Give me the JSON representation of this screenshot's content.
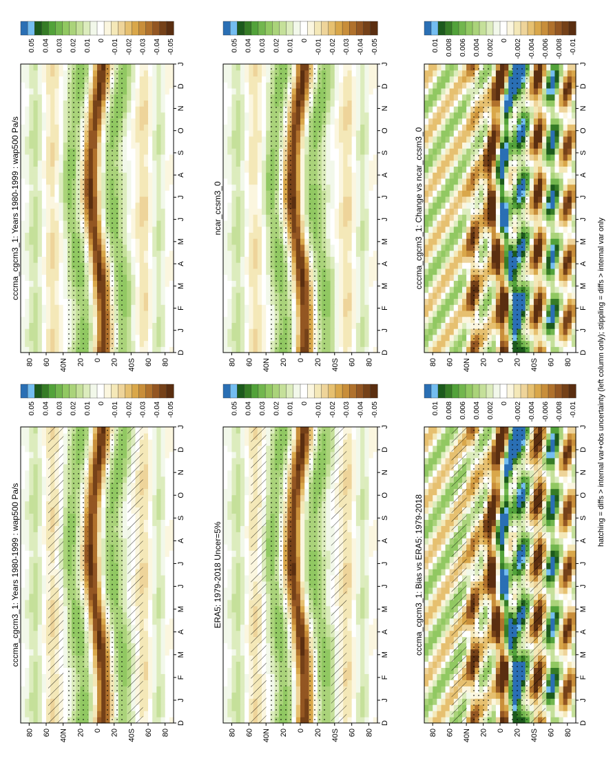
{
  "figure": {
    "orientation": "rotated 90 degrees counter-clockwise",
    "footnote": "hatching = diffs > internal var+obs uncertainty (left column only); stippling = diffs > internal var only"
  },
  "palette": {
    "colors": [
      "#2a6fb4",
      "#73bdf0",
      "#1c5a1c",
      "#367c26",
      "#52a23a",
      "#72b64e",
      "#91c862",
      "#aad37a",
      "#c5e09a",
      "#dcecbd",
      "#f2f8ea",
      "#ffffff",
      "#fbf6df",
      "#f4e8b8",
      "#eed49a",
      "#e6c070",
      "#d9a74a",
      "#c88e3a",
      "#b0712c",
      "#935622",
      "#754118",
      "#5a2e10"
    ]
  },
  "chart_data": [
    {
      "type": "heatmap",
      "id": "p1",
      "title": "cccma_cgcm3_1: Years 1980-1999 : wap500 Pa/s",
      "x": [
        "D",
        "J",
        "F",
        "M",
        "A",
        "M",
        "J",
        "J",
        "A",
        "S",
        "O",
        "N",
        "D",
        "J"
      ],
      "y_ticks": [
        "80",
        "60",
        "40N",
        "20",
        "0",
        "20",
        "40S",
        "60",
        "80"
      ],
      "field": "climatology",
      "colorbar": {
        "labels": [
          "0.05",
          "0.04",
          "0.03",
          "0.02",
          "0.01",
          "0",
          "-0.01",
          "-0.02",
          "-0.03",
          "-0.04",
          "-0.05"
        ],
        "range": [
          -0.055,
          0.055
        ]
      },
      "hatching": true,
      "stippling": true
    },
    {
      "type": "heatmap",
      "id": "p2",
      "title": "ERA5: 1979-2018 Uncer=5%",
      "x": [
        "D",
        "J",
        "F",
        "M",
        "A",
        "M",
        "J",
        "J",
        "A",
        "S",
        "O",
        "N",
        "D",
        "J"
      ],
      "y_ticks": [
        "80",
        "60",
        "40N",
        "20",
        "0",
        "20",
        "40S",
        "60",
        "80"
      ],
      "field": "climatology",
      "colorbar": {
        "labels": [
          "0.05",
          "0.04",
          "0.03",
          "0.02",
          "0.01",
          "0",
          "-0.01",
          "-0.02",
          "-0.03",
          "-0.04",
          "-0.05"
        ],
        "range": [
          -0.055,
          0.055
        ]
      },
      "hatching": true,
      "stippling": true
    },
    {
      "type": "heatmap",
      "id": "p3",
      "title": "cccma_cgcm3_1: Bias vs ERA5: 1979-2018",
      "x": [
        "D",
        "J",
        "F",
        "M",
        "A",
        "M",
        "J",
        "J",
        "A",
        "S",
        "O",
        "N",
        "D",
        "J"
      ],
      "y_ticks": [
        "80",
        "60",
        "40N",
        "20",
        "0",
        "20",
        "40S",
        "60",
        "80"
      ],
      "field": "difference",
      "colorbar": {
        "labels": [
          "0.01",
          "0.008",
          "0.006",
          "0.004",
          "0.002",
          "0",
          "-0.002",
          "-0.004",
          "-0.006",
          "-0.008",
          "-0.01"
        ],
        "range": [
          -0.011,
          0.011
        ]
      },
      "hatching": true,
      "stippling": true
    },
    {
      "type": "heatmap",
      "id": "p4",
      "title": "cccma_cgcm3_1: Years 1980-1999 : wap500 Pa/s",
      "x": [
        "D",
        "J",
        "F",
        "M",
        "A",
        "M",
        "J",
        "J",
        "A",
        "S",
        "O",
        "N",
        "D",
        "J"
      ],
      "y_ticks": [
        "80",
        "60",
        "40N",
        "20",
        "0",
        "20",
        "40S",
        "60",
        "80"
      ],
      "field": "climatology",
      "colorbar": {
        "labels": [
          "0.05",
          "0.04",
          "0.03",
          "0.02",
          "0.01",
          "0",
          "-0.01",
          "-0.02",
          "-0.03",
          "-0.04",
          "-0.05"
        ],
        "range": [
          -0.055,
          0.055
        ]
      },
      "hatching": false,
      "stippling": true
    },
    {
      "type": "heatmap",
      "id": "p5",
      "title": "ncar_ccsm3_0",
      "x": [
        "D",
        "J",
        "F",
        "M",
        "A",
        "M",
        "J",
        "J",
        "A",
        "S",
        "O",
        "N",
        "D",
        "J"
      ],
      "y_ticks": [
        "80",
        "60",
        "40N",
        "20",
        "0",
        "20",
        "40S",
        "60",
        "80"
      ],
      "field": "climatology",
      "colorbar": {
        "labels": [
          "0.05",
          "0.04",
          "0.03",
          "0.02",
          "0.01",
          "0",
          "-0.01",
          "-0.02",
          "-0.03",
          "-0.04",
          "-0.05"
        ],
        "range": [
          -0.055,
          0.055
        ]
      },
      "hatching": false,
      "stippling": true
    },
    {
      "type": "heatmap",
      "id": "p6",
      "title": "cccma_cgcm3_1: Change vs ncar_ccsm3_0",
      "x": [
        "D",
        "J",
        "F",
        "M",
        "A",
        "M",
        "J",
        "J",
        "A",
        "S",
        "O",
        "N",
        "D",
        "J"
      ],
      "y_ticks": [
        "80",
        "60",
        "40N",
        "20",
        "0",
        "20",
        "40S",
        "60",
        "80"
      ],
      "field": "difference",
      "colorbar": {
        "labels": [
          "0.01",
          "0.008",
          "0.006",
          "0.004",
          "0.002",
          "0",
          "-0.002",
          "-0.004",
          "-0.006",
          "-0.008",
          "-0.01"
        ],
        "range": [
          -0.011,
          0.011
        ]
      },
      "hatching": false,
      "stippling": true
    }
  ]
}
